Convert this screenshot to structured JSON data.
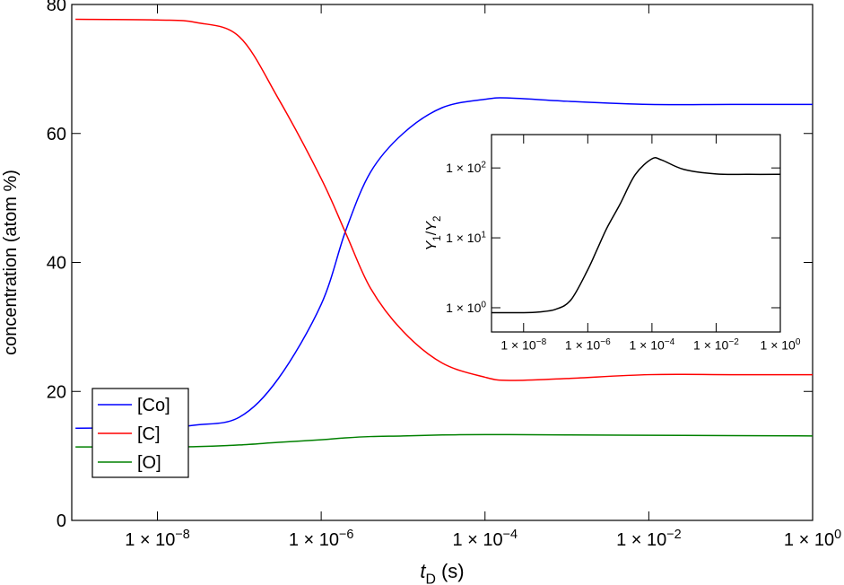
{
  "chart_data": [
    {
      "type": "line",
      "x_scale": "log",
      "y_scale": "linear",
      "x_label": {
        "symbol": "t",
        "subscript": "D",
        "unit": "(s)"
      },
      "y_label": "concentration (atom %)",
      "x": [
        1e-09,
        1e-08,
        3e-08,
        1e-07,
        3e-07,
        1e-06,
        2e-06,
        4e-06,
        1e-05,
        3e-05,
        0.0001,
        0.0002,
        0.001,
        0.01,
        0.1,
        1
      ],
      "series": [
        {
          "name": "[Co]",
          "color": "#0000ff",
          "values": [
            14.3,
            14.4,
            14.8,
            16,
            22,
            33.5,
            45,
            54,
            60,
            64,
            65.3,
            65.5,
            65,
            64.5,
            64.5,
            64.5
          ]
        },
        {
          "name": "[C]",
          "color": "#ff0000",
          "values": [
            77.7,
            77.6,
            77.2,
            75,
            65.4,
            53,
            44.5,
            36,
            29.3,
            24.4,
            22.2,
            21.7,
            22,
            22.6,
            22.6,
            22.6
          ]
        },
        {
          "name": "[O]",
          "color": "#008000",
          "values": [
            11.4,
            11.4,
            11.45,
            11.7,
            12.1,
            12.5,
            12.8,
            13,
            13.1,
            13.25,
            13.3,
            13.3,
            13.25,
            13.2,
            13.15,
            13.1
          ]
        }
      ],
      "xlim": [
        9e-10,
        1
      ],
      "xticks": [
        {
          "value": 1e-08,
          "label": "1 × 10−8"
        },
        {
          "value": 1e-06,
          "label": "1 × 10−6"
        },
        {
          "value": 0.0001,
          "label": "1 × 10−4"
        },
        {
          "value": 0.01,
          "label": "1 × 10−2"
        },
        {
          "value": 1,
          "label": "1 × 100"
        }
      ],
      "ylim": [
        0,
        80
      ],
      "yticks": [
        0,
        20,
        40,
        60,
        80
      ],
      "grid": false,
      "legend": "lower left"
    },
    {
      "type": "line",
      "x_scale": "log",
      "y_scale": "log",
      "y_label": {
        "numerator": {
          "symbol": "Y",
          "subscript": "1"
        },
        "separator": "/",
        "denominator": {
          "symbol": "Y",
          "subscript": "2"
        }
      },
      "x": [
        1e-09,
        1e-08,
        3e-08,
        1e-07,
        3e-07,
        1e-06,
        2e-06,
        4e-06,
        1e-05,
        3e-05,
        0.0001,
        0.0002,
        0.001,
        0.01,
        0.1,
        1
      ],
      "series": [
        {
          "color": "#000000",
          "values": [
            0.85,
            0.85,
            0.87,
            0.95,
            1.3,
            3.5,
            7,
            14,
            30,
            80,
            135,
            130,
            95,
            82,
            81,
            81
          ]
        }
      ],
      "xlim": [
        1e-09,
        1
      ],
      "xticks": [
        {
          "value": 1e-08,
          "label": "1 × 10−8"
        },
        {
          "value": 1e-06,
          "label": "1 × 10−6"
        },
        {
          "value": 0.0001,
          "label": "1 × 10−4"
        },
        {
          "value": 0.01,
          "label": "1 × 10−2"
        },
        {
          "value": 1,
          "label": "1 × 100"
        }
      ],
      "ylim": [
        0.45,
        300
      ],
      "yticks": [
        {
          "value": 1,
          "label": "1 × 100"
        },
        {
          "value": 10,
          "label": "1 × 101"
        },
        {
          "value": 100,
          "label": "1 × 102"
        }
      ],
      "grid": false
    }
  ]
}
